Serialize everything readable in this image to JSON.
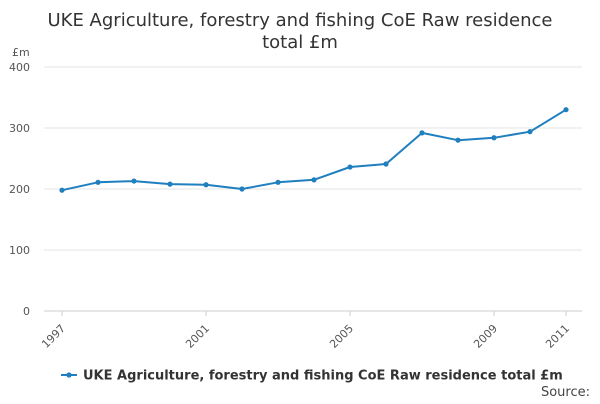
{
  "chart_data": {
    "type": "line",
    "title": "UKE Agriculture, forestry and fishing CoE Raw residence total £m",
    "title_lines": [
      "UKE Agriculture, forestry and fishing CoE Raw residence",
      "total £m"
    ],
    "ylabel": "£m",
    "xlabel": "",
    "ylim": [
      0,
      400
    ],
    "yticks": [
      0,
      100,
      200,
      300,
      400
    ],
    "xlim": [
      1997,
      2011
    ],
    "xticks": [
      1997,
      2001,
      2005,
      2009,
      2011
    ],
    "grid": true,
    "legend_position": "bottom",
    "series": [
      {
        "name": "UKE Agriculture, forestry and fishing CoE Raw residence total £m",
        "color": "#1f7fbf",
        "x": [
          1997,
          1998,
          1999,
          2000,
          2001,
          2002,
          2003,
          2004,
          2005,
          2006,
          2007,
          2008,
          2009,
          2010,
          2011
        ],
        "values": [
          198,
          211,
          213,
          208,
          207,
          200,
          211,
          215,
          236,
          241,
          292,
          280,
          284,
          294,
          330
        ]
      }
    ]
  },
  "source_label": "Source:"
}
